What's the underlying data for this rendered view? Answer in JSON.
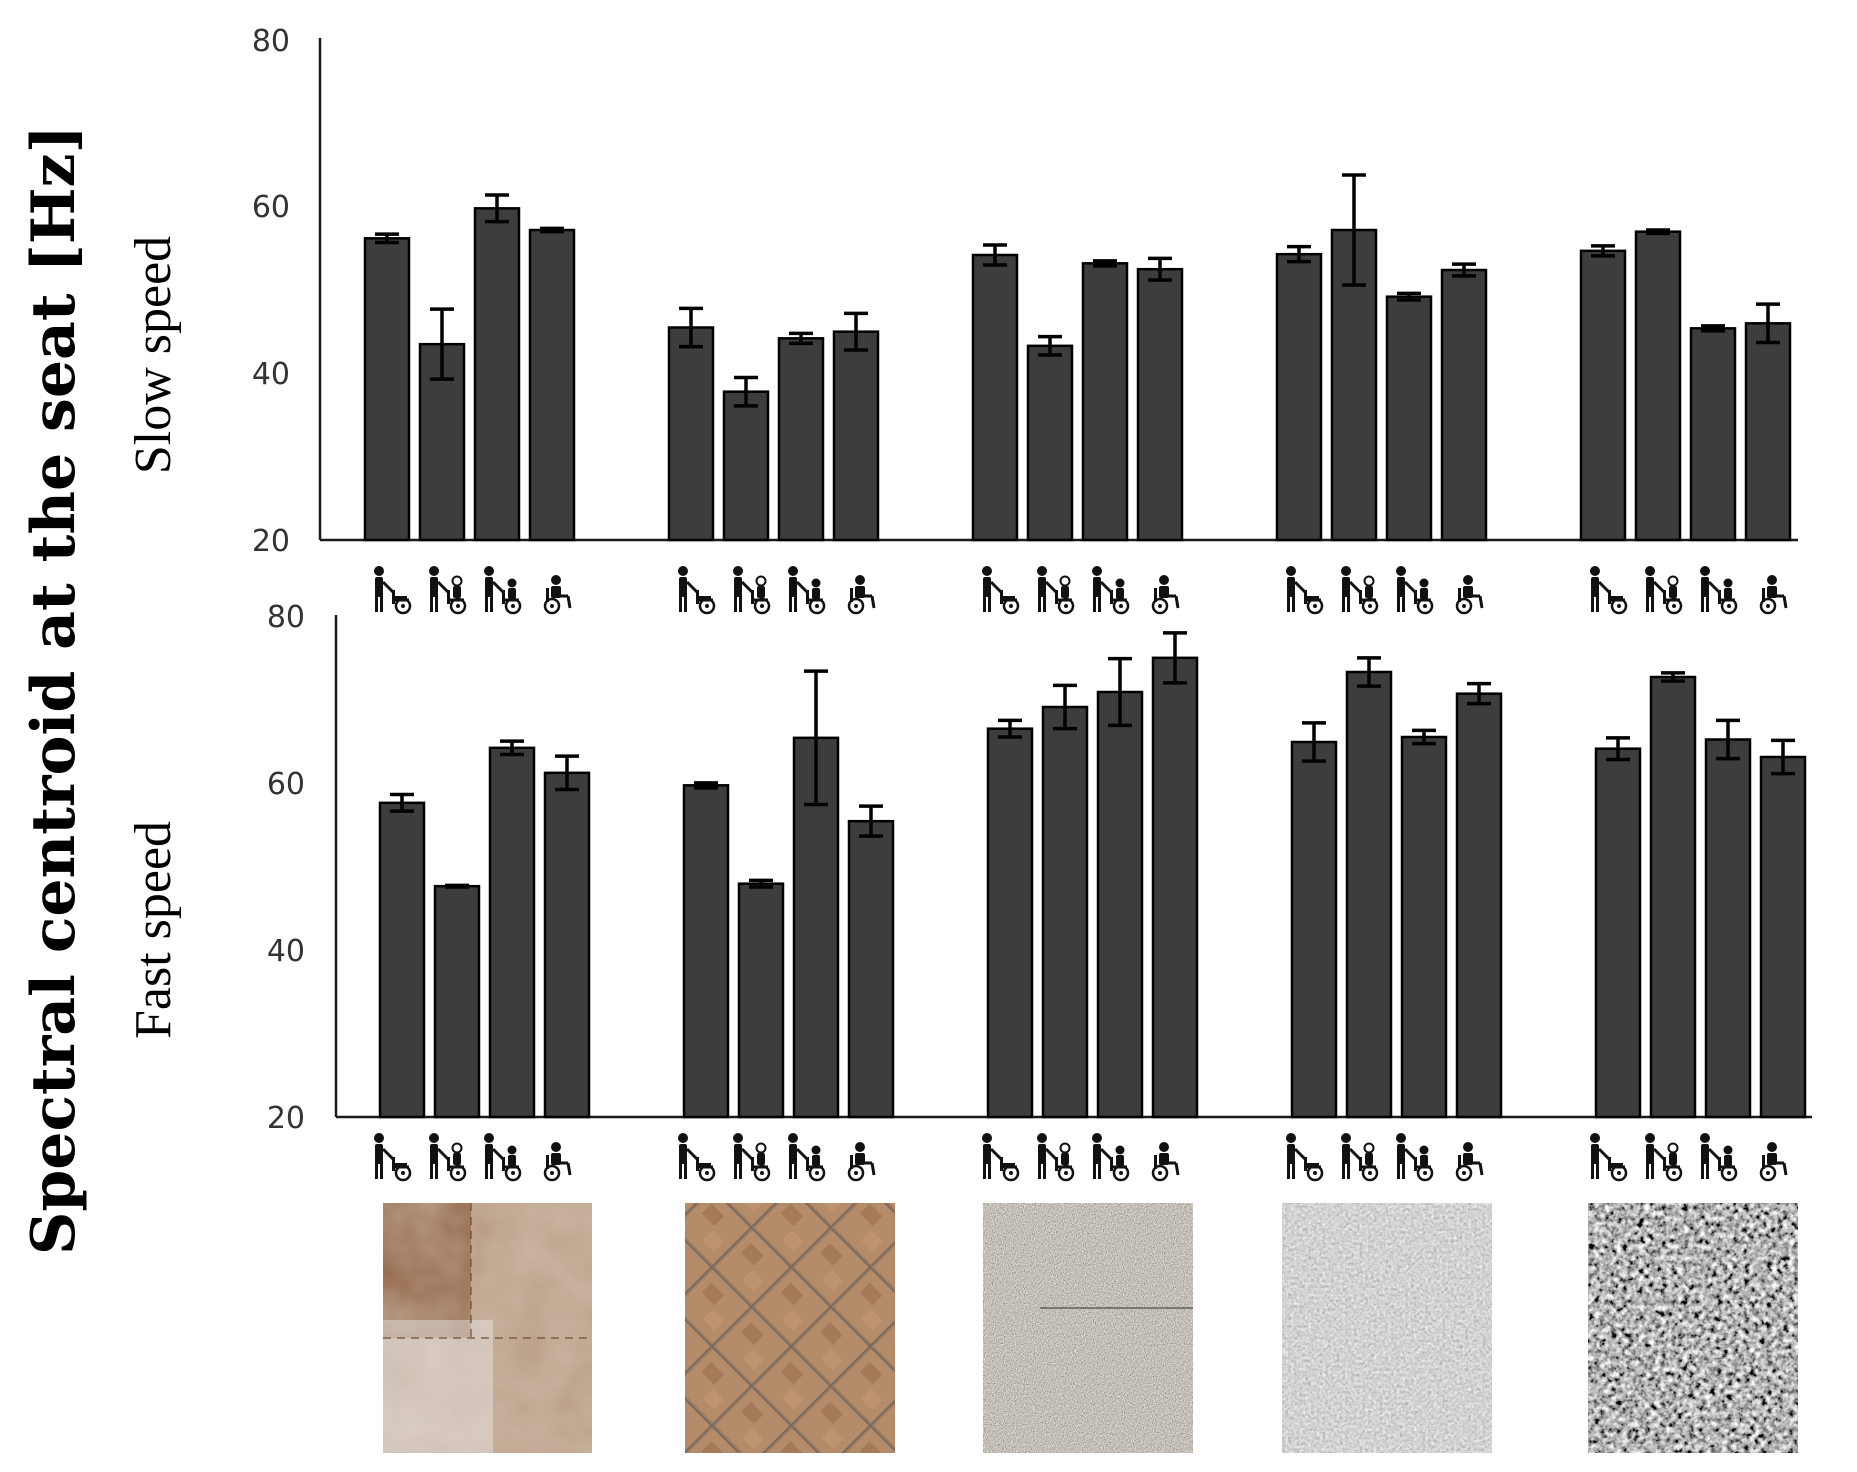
{
  "chart_data": {
    "type": "bar",
    "ylabel": "Spectral centroid at the seat [Hz]",
    "icon_categories": [
      "person-pushing-wheelchair-icon",
      "person-pushing-wheelchair-with-occupant-icon",
      "person-pushing-wheelchair-alt-icon",
      "self-propelled-wheelchair-icon"
    ],
    "surface_images": [
      "polished-stone-floor",
      "brown-diamond-tile-floor",
      "fine-speckled-granite-floor",
      "gray-textured-granite-floor",
      "coarse-dark-granite-floor"
    ],
    "panels": [
      {
        "id": "slow",
        "label": "Slow speed",
        "ylim": [
          20,
          80
        ],
        "yticks": [
          "20",
          "40",
          "60",
          "80"
        ],
        "groups": [
          {
            "values": [
              56.2,
              43.5,
              59.8,
              57.2
            ],
            "errors": [
              0.5,
              4.2,
              1.6,
              0.2
            ]
          },
          {
            "values": [
              45.5,
              37.8,
              44.2,
              45.0
            ],
            "errors": [
              2.3,
              1.7,
              0.6,
              2.2
            ]
          },
          {
            "values": [
              54.2,
              43.3,
              53.2,
              52.5
            ],
            "errors": [
              1.2,
              1.1,
              0.3,
              1.3
            ]
          },
          {
            "values": [
              54.3,
              57.2,
              49.2,
              52.4
            ],
            "errors": [
              0.9,
              6.6,
              0.4,
              0.7
            ]
          },
          {
            "values": [
              54.7,
              57.0,
              45.4,
              46.0
            ],
            "errors": [
              0.6,
              0.2,
              0.3,
              2.3
            ]
          }
        ]
      },
      {
        "id": "fast",
        "label": "Fast speed",
        "ylim": [
          20,
          80
        ],
        "yticks": [
          "20",
          "40",
          "60",
          "80"
        ],
        "groups": [
          {
            "values": [
              57.7,
              47.7,
              64.3,
              61.3
            ],
            "errors": [
              1.0,
              0.1,
              0.8,
              2.0
            ]
          },
          {
            "values": [
              59.8,
              48.0,
              65.5,
              55.5
            ],
            "errors": [
              0.3,
              0.4,
              8.0,
              1.8
            ]
          },
          {
            "values": [
              66.6,
              69.2,
              71.0,
              75.1
            ],
            "errors": [
              1.0,
              2.6,
              4.0,
              3.0
            ]
          },
          {
            "values": [
              65.0,
              73.4,
              65.6,
              70.8
            ],
            "errors": [
              2.3,
              1.7,
              0.8,
              1.2
            ]
          },
          {
            "values": [
              64.2,
              72.8,
              65.3,
              63.2
            ],
            "errors": [
              1.3,
              0.5,
              2.3,
              2.0
            ]
          }
        ]
      }
    ],
    "colors": {
      "bar": "#3d3d3d",
      "bar_edge": "#000000",
      "axis": "#1a1a1a"
    }
  }
}
